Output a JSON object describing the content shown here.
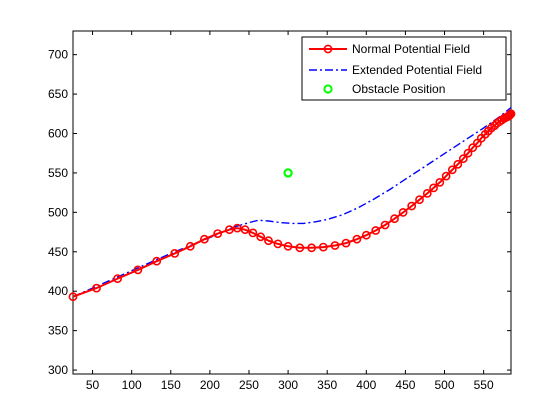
{
  "chart_data": {
    "type": "line",
    "title": "",
    "xlabel": "",
    "ylabel": "",
    "xlim": [
      25,
      585
    ],
    "ylim": [
      295,
      730
    ],
    "xticks": [
      50,
      100,
      150,
      200,
      250,
      300,
      350,
      400,
      450,
      500,
      550
    ],
    "yticks": [
      300,
      350,
      400,
      450,
      500,
      550,
      600,
      650,
      700
    ],
    "grid": false,
    "legend_position": "top-right",
    "series": [
      {
        "name": "Normal Potential Field",
        "color": "#ff0000",
        "line_style": "solid",
        "marker": "circle",
        "x": [
          25,
          55,
          82,
          108,
          132,
          155,
          175,
          193,
          210,
          225,
          235,
          245,
          255,
          265,
          275,
          287,
          300,
          315,
          330,
          345,
          360,
          374,
          388,
          400,
          412,
          424,
          436,
          447,
          458,
          468,
          478,
          486,
          494,
          502,
          510,
          517,
          524,
          530,
          536,
          542,
          547,
          552,
          556,
          560,
          564,
          567,
          570,
          573,
          576,
          578,
          580,
          582,
          583,
          584,
          585
        ],
        "y": [
          393,
          404,
          416,
          427,
          438,
          448,
          457,
          466,
          473,
          478,
          480,
          478,
          474,
          469,
          464,
          460,
          457,
          455,
          455,
          456,
          458,
          461,
          466,
          471,
          477,
          484,
          492,
          500,
          508,
          516,
          524,
          531,
          538,
          546,
          554,
          561,
          568,
          575,
          582,
          588,
          594,
          599,
          603,
          607,
          610,
          613,
          615,
          617,
          619,
          620,
          621,
          622,
          623,
          624,
          625
        ]
      },
      {
        "name": "Extended Potential Field",
        "color": "#0000ff",
        "line_style": "dashdot",
        "marker": "none",
        "x": [
          25,
          100,
          150,
          200,
          230,
          250,
          262,
          275,
          290,
          305,
          320,
          335,
          350,
          370,
          390,
          410,
          430,
          450,
          470,
          490,
          510,
          530,
          550,
          570,
          585
        ],
        "y": [
          393,
          426,
          448,
          468,
          481,
          487,
          490,
          489,
          487,
          486,
          486,
          488,
          491,
          497,
          506,
          517,
          529,
          542,
          555,
          568,
          581,
          594,
          607,
          621,
          633
        ]
      },
      {
        "name": "Obstacle Position",
        "color": "#00ff00",
        "line_style": "none",
        "marker": "circle",
        "x": [
          300
        ],
        "y": [
          550
        ]
      }
    ]
  }
}
